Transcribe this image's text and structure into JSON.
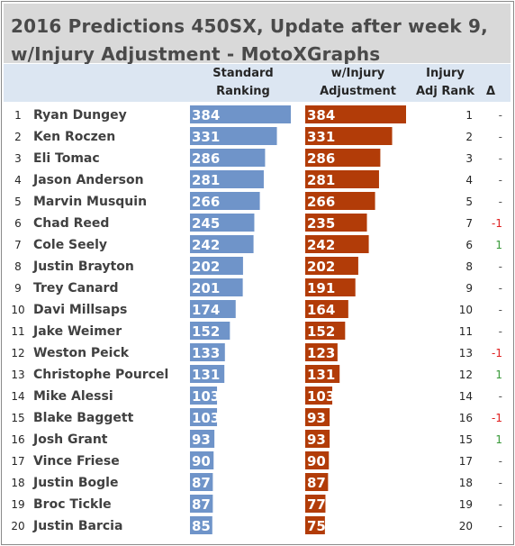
{
  "title": {
    "line1": "2016 Predictions 450SX, Update after week 9,",
    "line2": "w/Injury Adjustment - MotoXGraphs"
  },
  "headers": {
    "standard": [
      "Standard",
      "Ranking"
    ],
    "injury": [
      "w/Injury",
      "Adjustment"
    ],
    "rank": [
      "Injury",
      "Adj Rank"
    ],
    "delta": "Δ"
  },
  "colors": {
    "standard_bar": "#6f94c9",
    "injury_bar": "#b23c08",
    "delta_negative": "#e02020",
    "delta_positive": "#3a9a3a",
    "delta_neutral": "#555555"
  },
  "chart_data": {
    "type": "bar",
    "orientation": "horizontal",
    "categories": [
      "Ryan Dungey",
      "Ken Roczen",
      "Eli Tomac",
      "Jason Anderson",
      "Marvin Musquin",
      "Chad Reed",
      "Cole Seely",
      "Justin Brayton",
      "Trey Canard",
      "Davi Millsaps",
      "Jake Weimer",
      "Weston Peick",
      "Christophe Pourcel",
      "Mike Alessi",
      "Blake Baggett",
      "Josh Grant",
      "Vince Friese",
      "Justin Bogle",
      "Broc Tickle",
      "Justin Barcia"
    ],
    "ranks": [
      "1",
      "2",
      "3",
      "4",
      "5",
      "6",
      "7",
      "8",
      "9",
      "10",
      "11",
      "12",
      "13",
      "14",
      "15",
      "16",
      "17",
      "18",
      "19",
      "20"
    ],
    "series": [
      {
        "name": "Standard Ranking",
        "values": [
          384,
          331,
          286,
          281,
          266,
          245,
          242,
          202,
          201,
          174,
          152,
          133,
          131,
          103,
          103,
          93,
          90,
          87,
          87,
          85
        ]
      },
      {
        "name": "w/Injury Adjustment",
        "values": [
          384,
          331,
          286,
          281,
          266,
          235,
          242,
          202,
          191,
          164,
          152,
          123,
          131,
          103,
          93,
          93,
          90,
          87,
          77,
          75
        ]
      }
    ],
    "injury_adj_rank": [
      1,
      2,
      3,
      4,
      5,
      7,
      6,
      8,
      9,
      10,
      11,
      13,
      12,
      14,
      16,
      15,
      17,
      18,
      19,
      20
    ],
    "delta": [
      "-",
      "-",
      "-",
      "-",
      "-",
      "-1",
      "1",
      "-",
      "-",
      "-",
      "-",
      "-1",
      "1",
      "-",
      "-1",
      "1",
      "-",
      "-",
      "-",
      "-"
    ],
    "xlim": [
      0,
      384
    ],
    "grid": false,
    "legend": "none"
  }
}
